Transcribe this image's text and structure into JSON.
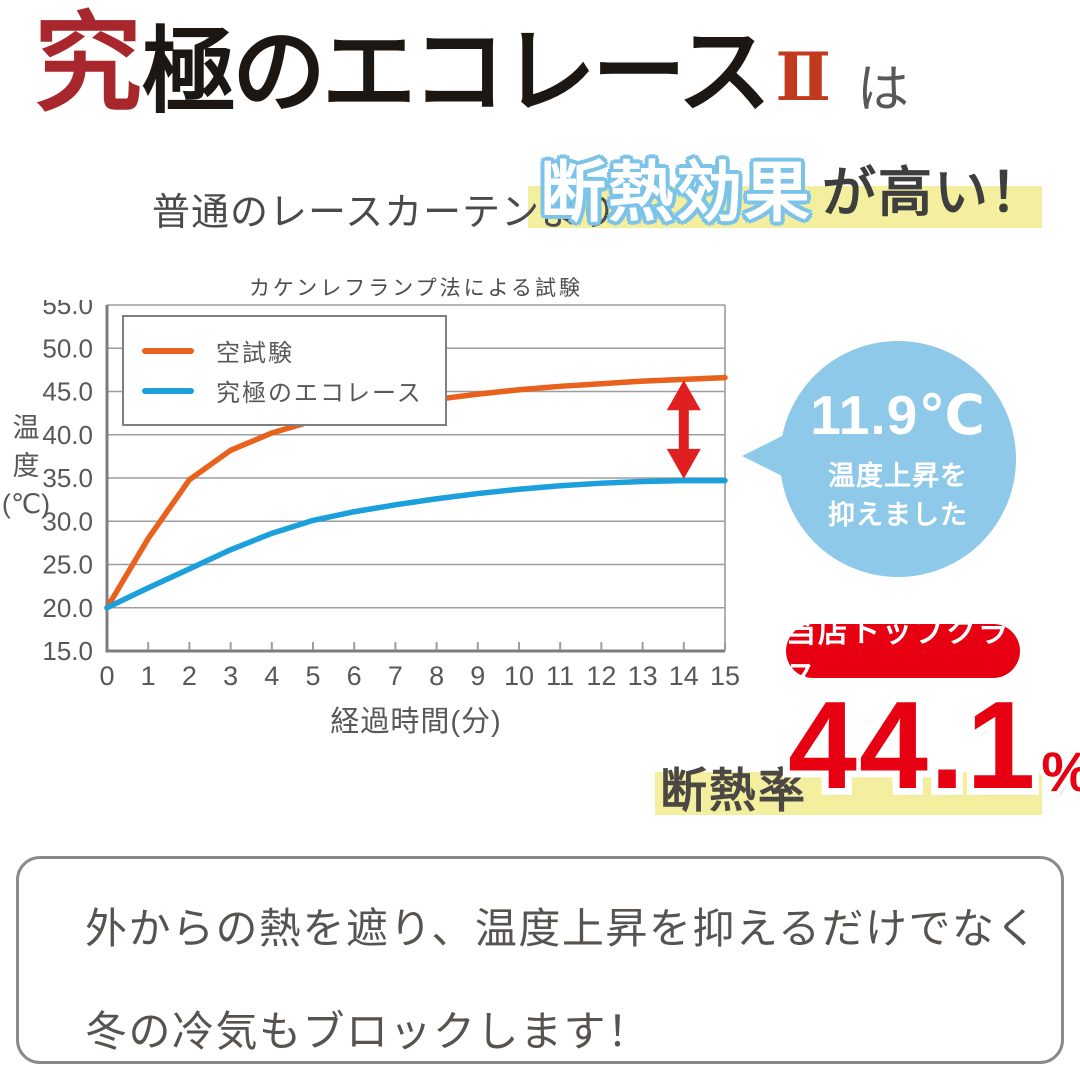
{
  "header": {
    "logo_part1": "究",
    "logo_part2": "極のエコレース",
    "logo_part3": "Ⅱ",
    "logo_suffix": "は",
    "logo_red": "#a8272c",
    "logo_black": "#1c1713",
    "logo_numeral_red": "#c23a1e"
  },
  "subheadline": {
    "prefix": "普通のレースカーテンより",
    "highlight": "断熱効果",
    "suffix": "が高い！",
    "highlight_outline_color": "#7cc3e9",
    "marker_color": "#f3ef9e"
  },
  "chart_data": {
    "type": "line",
    "title": "カケンレフランプ法による試験",
    "xlabel": "経過時間(分)",
    "ylabel": "温度(℃)",
    "ylabel_lines": [
      "温",
      "度",
      "(℃)"
    ],
    "xlim": [
      0,
      15
    ],
    "ylim": [
      15,
      55
    ],
    "grid": true,
    "legend_position": "top-left",
    "xticks": [
      0,
      1,
      2,
      3,
      4,
      5,
      6,
      7,
      8,
      9,
      10,
      11,
      12,
      13,
      14,
      15
    ],
    "yticks": [
      15,
      20,
      25,
      30,
      35,
      40,
      45,
      50,
      55
    ],
    "ytick_labels": [
      "15.0",
      "20.0",
      "25.0",
      "30.0",
      "35.0",
      "40.0",
      "45.0",
      "50.0",
      "55.0"
    ],
    "x": [
      0,
      1,
      2,
      3,
      4,
      5,
      6,
      7,
      8,
      9,
      10,
      11,
      12,
      13,
      14,
      15
    ],
    "series": [
      {
        "name": "空試験",
        "color": "#e8611d",
        "values": [
          20.0,
          28.0,
          34.8,
          38.2,
          40.2,
          41.6,
          42.6,
          43.4,
          44.1,
          44.7,
          45.2,
          45.6,
          45.9,
          46.2,
          46.4,
          46.6
        ]
      },
      {
        "name": "究極のエコレース",
        "color": "#1ba0dc",
        "values": [
          20.0,
          22.3,
          24.5,
          26.7,
          28.6,
          30.1,
          31.1,
          31.9,
          32.6,
          33.2,
          33.7,
          34.1,
          34.4,
          34.6,
          34.7,
          34.7
        ]
      }
    ],
    "annotation_arrow": {
      "x": 14,
      "top": 46.3,
      "bottom": 34.9,
      "color": "#e02020"
    }
  },
  "bubble": {
    "value": "11.9℃",
    "line1": "温度上昇を",
    "line2": "抑えました",
    "color": "#8fc9e9"
  },
  "badge": {
    "label": "当店トップクラス",
    "color": "#e60012"
  },
  "insulation": {
    "label": "断熱率",
    "value": "44.1",
    "unit": "%",
    "value_color": "#e60012",
    "marker_color": "#f3ef9e"
  },
  "footer_note": {
    "line1": "外からの熱を遮り、温度上昇を抑えるだけでなく",
    "line2": "冬の冷気もブロックします！"
  }
}
